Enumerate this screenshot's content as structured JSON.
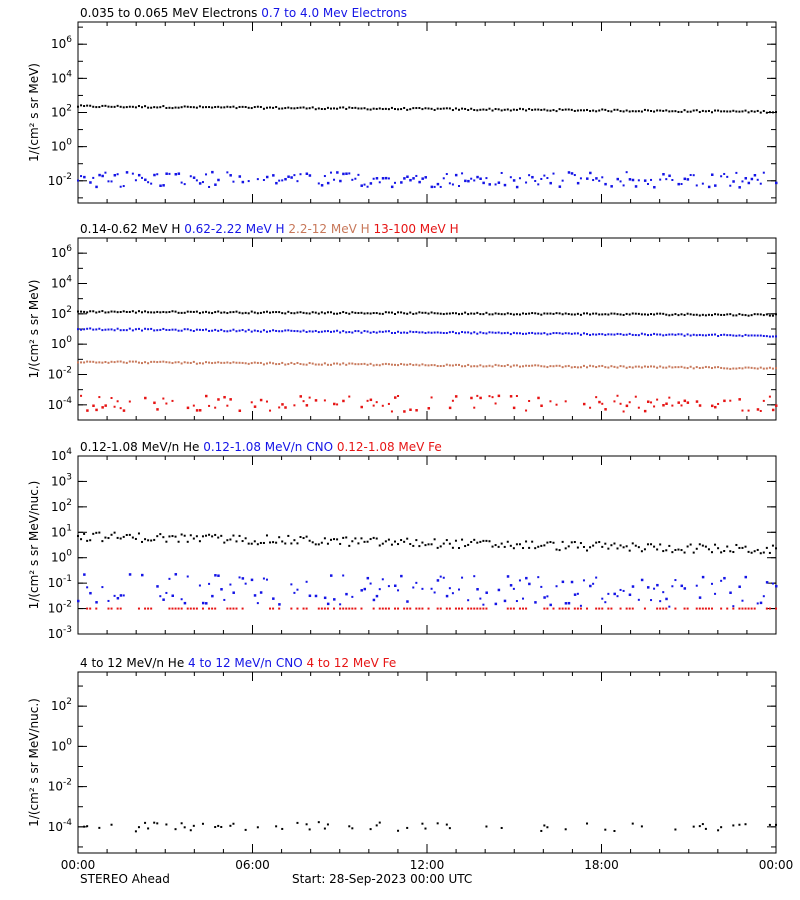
{
  "colors": {
    "black": "#000000",
    "blue": "#1414e6",
    "salmon": "#c8785a",
    "red": "#e61414"
  },
  "footer": {
    "spacecraft": "STEREO Ahead",
    "start": "Start: 28-Sep-2023 00:00 UTC"
  },
  "chart_data": [
    {
      "type": "scatter",
      "titles": [
        {
          "text": "0.035 to 0.065 MeV Electrons",
          "color": "black"
        },
        {
          "text": "0.7 to 4.0 Mev Electrons",
          "color": "blue"
        }
      ],
      "ylabel": "1/(cm² s sr MeV)",
      "yscale": "log",
      "ylim": [
        0.0005,
        20000000
      ],
      "yticks": [
        {
          "exp": "-2",
          "value": 0.01
        },
        {
          "exp": "0",
          "value": 1
        },
        {
          "exp": "2",
          "value": 100
        },
        {
          "exp": "4",
          "value": 10000
        },
        {
          "exp": "6",
          "value": 1000000
        }
      ],
      "xlim_hours": [
        0,
        24
      ],
      "series": [
        {
          "name": "0.035 to 0.065 MeV Electrons",
          "color": "black",
          "start": 230,
          "end": 110,
          "noise": 0.02,
          "density": 1.0
        },
        {
          "name": "0.7 to 4.0 Mev Electrons",
          "color": "blue",
          "start": 0.012,
          "end": 0.012,
          "noise": 0.15,
          "density": 0.85
        }
      ]
    },
    {
      "type": "scatter",
      "titles": [
        {
          "text": "0.14-0.62 MeV H",
          "color": "black"
        },
        {
          "text": "0.62-2.22 MeV H",
          "color": "blue"
        },
        {
          "text": "2.2-12 MeV H",
          "color": "salmon"
        },
        {
          "text": "13-100 MeV H",
          "color": "red"
        }
      ],
      "ylabel": "1/(cm² s sr MeV)",
      "yscale": "log",
      "ylim": [
        1e-05,
        10000000
      ],
      "yticks": [
        {
          "exp": "-4",
          "value": 0.0001
        },
        {
          "exp": "-2",
          "value": 0.01
        },
        {
          "exp": "0",
          "value": 1
        },
        {
          "exp": "2",
          "value": 100
        },
        {
          "exp": "4",
          "value": 10000
        },
        {
          "exp": "6",
          "value": 1000000
        }
      ],
      "xlim_hours": [
        0,
        24
      ],
      "series": [
        {
          "name": "0.14-0.62 MeV H",
          "color": "black",
          "start": 140,
          "end": 85,
          "noise": 0.02,
          "density": 1.0
        },
        {
          "name": "0.62-2.22 MeV H",
          "color": "blue",
          "start": 10,
          "end": 3.5,
          "noise": 0.02,
          "density": 1.0
        },
        {
          "name": "2.2-12 MeV H",
          "color": "salmon",
          "start": 0.07,
          "end": 0.025,
          "noise": 0.02,
          "density": 1.0
        },
        {
          "name": "13-100 MeV H",
          "color": "red",
          "start": 0.00012,
          "end": 0.00012,
          "noise": 0.18,
          "density": 0.6
        }
      ]
    },
    {
      "type": "scatter",
      "titles": [
        {
          "text": "0.12-1.08 MeV/n He",
          "color": "black"
        },
        {
          "text": "0.12-1.08 MeV/n CNO",
          "color": "blue"
        },
        {
          "text": "0.12-1.08 MeV Fe",
          "color": "red"
        }
      ],
      "ylabel": "1/(cm² s sr MeV/nuc.)",
      "yscale": "log",
      "ylim": [
        0.001,
        10000
      ],
      "yticks": [
        {
          "exp": "-3",
          "value": 0.001
        },
        {
          "exp": "-2",
          "value": 0.01
        },
        {
          "exp": "-1",
          "value": 0.1
        },
        {
          "exp": "0",
          "value": 1
        },
        {
          "exp": "1",
          "value": 10
        },
        {
          "exp": "2",
          "value": 100
        },
        {
          "exp": "3",
          "value": 1000
        },
        {
          "exp": "4",
          "value": 10000
        }
      ],
      "xlim_hours": [
        0,
        24
      ],
      "series": [
        {
          "name": "0.12-1.08 MeV/n He",
          "color": "black",
          "start": 7,
          "end": 2,
          "noise": 0.06,
          "density": 1.0
        },
        {
          "name": "0.12-1.08 MeV/n CNO",
          "color": "blue",
          "start": 0.06,
          "end": 0.045,
          "noise": 0.2,
          "density": 0.7
        },
        {
          "name": "0.12-1.08 MeV Fe",
          "color": "red",
          "start": 0.01,
          "end": 0.01,
          "noise": 0.0,
          "density": 0.55
        }
      ]
    },
    {
      "type": "scatter",
      "titles": [
        {
          "text": "4 to 12 MeV/n He",
          "color": "black"
        },
        {
          "text": "4 to 12 MeV/n CNO",
          "color": "blue"
        },
        {
          "text": "4 to 12 MeV Fe",
          "color": "red"
        }
      ],
      "ylabel": "1/(cm² s sr MeV/nuc.)",
      "yscale": "log",
      "ylim": [
        5e-06,
        5000
      ],
      "yticks": [
        {
          "exp": "-4",
          "value": 0.0001
        },
        {
          "exp": "-2",
          "value": 0.01
        },
        {
          "exp": "0",
          "value": 1
        },
        {
          "exp": "2",
          "value": 100
        }
      ],
      "xlim_hours": [
        0,
        24
      ],
      "series": [
        {
          "name": "4 to 12 MeV/n He",
          "color": "black",
          "start": 0.0001,
          "end": 0.0001,
          "noise": 0.08,
          "density": 0.28
        }
      ]
    }
  ],
  "xaxis": {
    "ticks": [
      {
        "hour": 0,
        "label": "00:00"
      },
      {
        "hour": 6,
        "label": "06:00"
      },
      {
        "hour": 12,
        "label": "12:00"
      },
      {
        "hour": 18,
        "label": "18:00"
      },
      {
        "hour": 24,
        "label": "00:00"
      }
    ]
  }
}
